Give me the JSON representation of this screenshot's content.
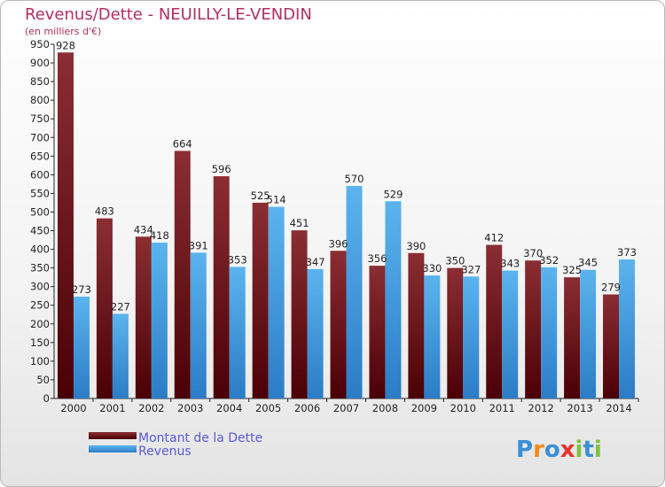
{
  "chart_data": {
    "type": "bar",
    "title": "Revenus/Dette - NEUILLY-LE-VENDIN",
    "subtitle": "(en milliers d'€)",
    "categories": [
      "2000",
      "2001",
      "2002",
      "2003",
      "2004",
      "2005",
      "2006",
      "2007",
      "2008",
      "2009",
      "2010",
      "2011",
      "2012",
      "2013",
      "2014"
    ],
    "series": [
      {
        "name": "Montant de la Dette",
        "values": [
          928,
          483,
          434,
          664,
          596,
          525,
          451,
          396,
          356,
          390,
          350,
          412,
          370,
          325,
          279
        ]
      },
      {
        "name": "Revenus",
        "values": [
          273,
          227,
          418,
          391,
          353,
          514,
          347,
          570,
          529,
          330,
          327,
          343,
          352,
          345,
          373
        ]
      }
    ],
    "yticks": [
      "0",
      "50",
      "100",
      "150",
      "200",
      "250",
      "300",
      "350",
      "400",
      "450",
      "500",
      "550",
      "600",
      "650",
      "700",
      "750",
      "800",
      "850",
      "900",
      "950"
    ],
    "ylim": [
      0,
      950
    ],
    "grid": false,
    "legend_position": "bottom-left"
  },
  "colors": {
    "dette_top": "#8a2e33",
    "dette_bottom": "#4a0005",
    "revenus_top": "#5bb4ee",
    "revenus_bottom": "#2b7cc6"
  },
  "logo": {
    "letters": [
      "P",
      "r",
      "o",
      "x",
      "i",
      "t",
      "i"
    ]
  }
}
